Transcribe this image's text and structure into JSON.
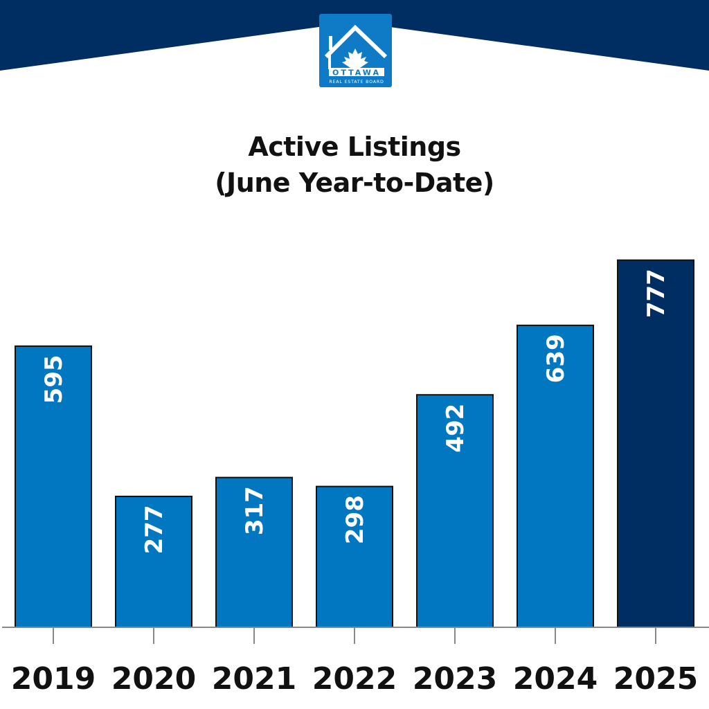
{
  "brand": {
    "logo_text": "OTTAWA",
    "logo_subtext": "REAL ESTATE BOARD",
    "navy": "#002d62",
    "blue": "#0077c0"
  },
  "chart_data": {
    "type": "bar",
    "title_line1": "Active Listings",
    "title_line2": "(June Year-to-Date)",
    "categories": [
      "2019",
      "2020",
      "2021",
      "2022",
      "2023",
      "2024",
      "2025"
    ],
    "values": [
      595,
      277,
      317,
      298,
      492,
      639,
      777
    ],
    "labels": [
      "595",
      "277",
      "317",
      "298",
      "492",
      "639",
      "777"
    ],
    "bar_colors": [
      "#0077c0",
      "#0077c0",
      "#0077c0",
      "#0077c0",
      "#0077c0",
      "#0077c0",
      "#002d62"
    ],
    "data_labels": "inside-rotated",
    "grid": false,
    "legend": "none",
    "ylim": [
      0,
      780
    ]
  }
}
